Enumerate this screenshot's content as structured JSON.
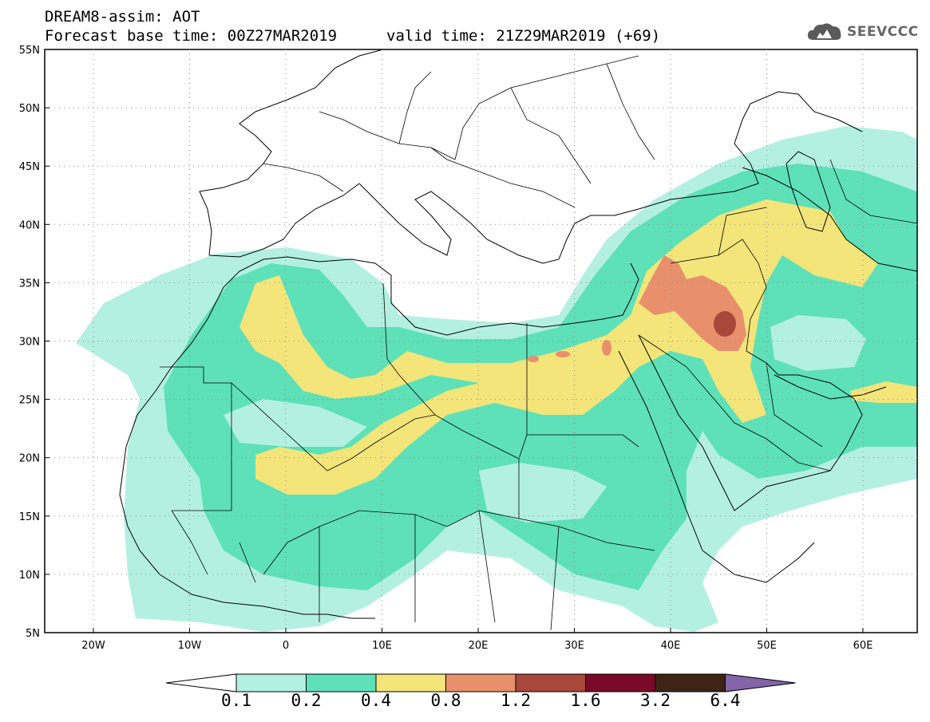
{
  "header": {
    "title": "DREAM8-assim: AOT",
    "base_time": "Forecast base time: 00Z27MAR2019",
    "valid_time": "valid time: 21Z29MAR2019 (+69)"
  },
  "brand": {
    "name": "SEEVCCC",
    "icon": "cloud-logo-icon"
  },
  "axes": {
    "lat_labels": [
      "55N",
      "50N",
      "45N",
      "40N",
      "35N",
      "30N",
      "25N",
      "20N",
      "15N",
      "10N",
      "5N"
    ],
    "lon_labels": [
      "20W",
      "10W",
      "0",
      "10E",
      "20E",
      "30E",
      "40E",
      "50E",
      "60E"
    ]
  },
  "colorbar": {
    "labels": [
      "0.1",
      "0.2",
      "0.4",
      "0.8",
      "1.2",
      "1.6",
      "3.2",
      "6.4"
    ],
    "colors": [
      "#ffffff",
      "#b4f0e2",
      "#5ee1b8",
      "#f3e57a",
      "#e8906b",
      "#a9473b",
      "#7a0a28",
      "#3d2415",
      "#8464a8"
    ]
  },
  "map_colors": {
    "c1": "#b4f0e2",
    "c2": "#5ee1b8",
    "c3": "#f3e57a",
    "c4": "#e8906b",
    "c5": "#a9473b"
  }
}
